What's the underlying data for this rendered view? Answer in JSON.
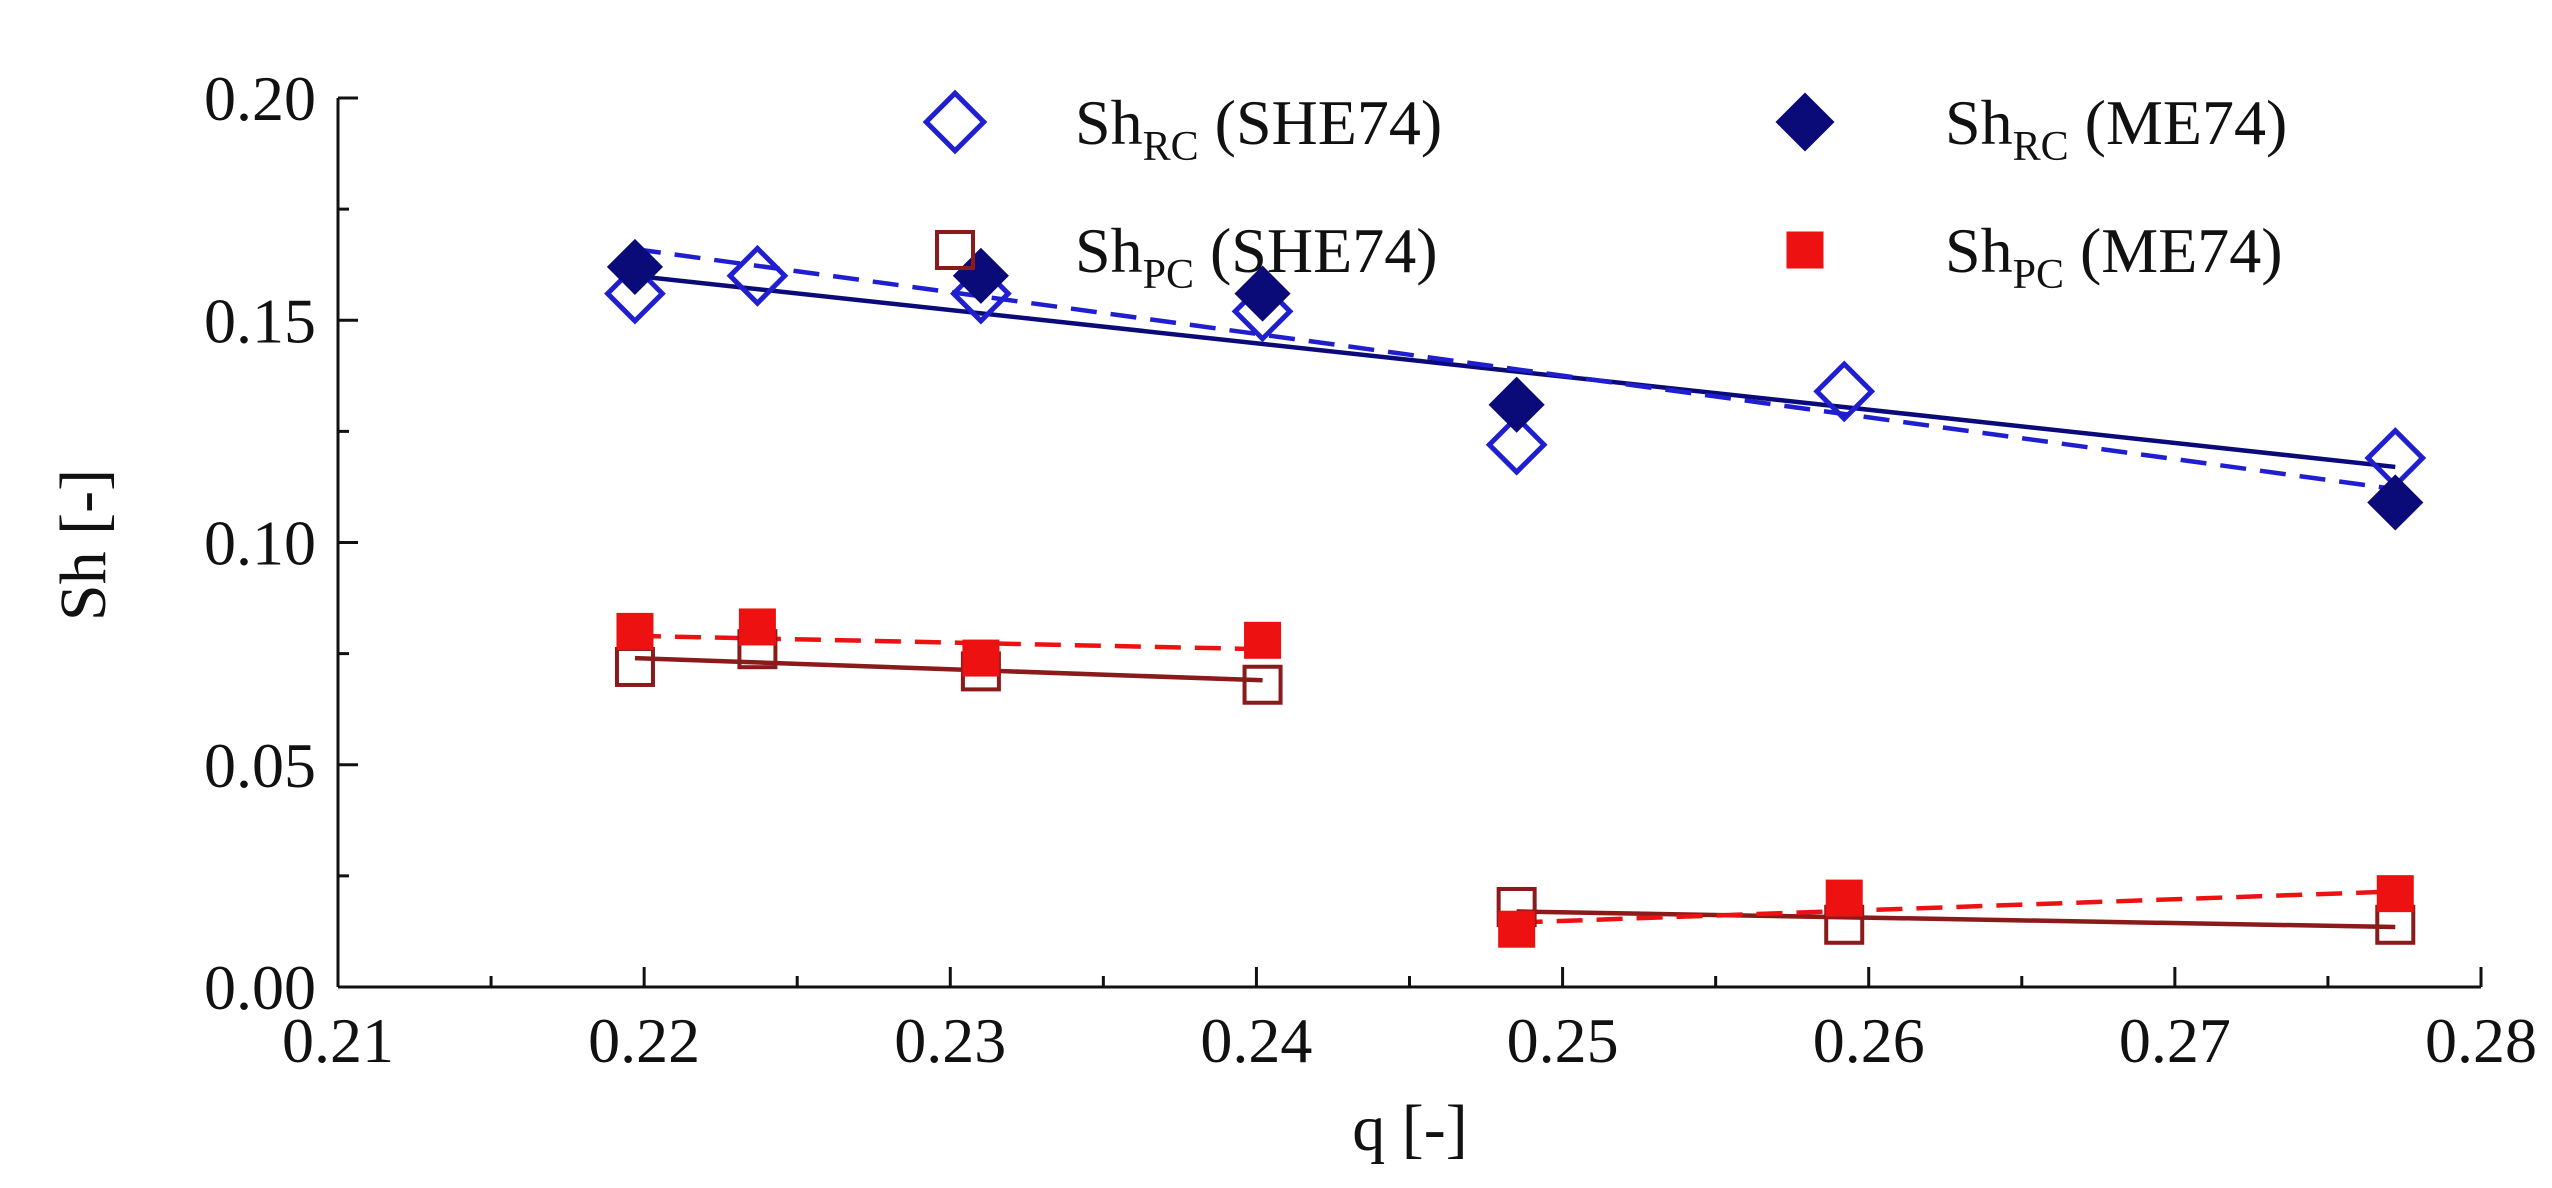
{
  "chart_data": {
    "type": "scatter",
    "title": "",
    "xlabel": "q [-]",
    "ylabel": "Sh [-]",
    "xlim": [
      0.21,
      0.28
    ],
    "ylim": [
      0.0,
      0.2
    ],
    "x_ticks": [
      0.21,
      0.22,
      0.23,
      0.24,
      0.25,
      0.26,
      0.27,
      0.28
    ],
    "x_tick_labels": [
      "0.21",
      "0.22",
      "0.23",
      "0.24",
      "0.25",
      "0.26",
      "0.27",
      "0.28"
    ],
    "y_ticks": [
      0.0,
      0.05,
      0.1,
      0.15,
      0.2
    ],
    "y_tick_labels": [
      "0.00",
      "0.05",
      "0.10",
      "0.15",
      "0.20"
    ],
    "grid": false,
    "legend_position": "top",
    "series": [
      {
        "key": "rc-she",
        "name": "Sh_RC (SHE74)",
        "legend_main": "Sh",
        "legend_sub": "RC",
        "legend_rest": " (SHE74)",
        "marker": "diamond-open",
        "color": "#1f1fd0",
        "x": [
          0.2197,
          0.2237,
          0.231,
          0.2402,
          0.2485,
          0.2592,
          0.2772
        ],
        "y": [
          0.156,
          0.16,
          0.156,
          0.152,
          0.122,
          0.134,
          0.119
        ]
      },
      {
        "key": "rc-me",
        "name": "Sh_RC (ME74)",
        "legend_main": "Sh",
        "legend_sub": "RC",
        "legend_rest": " (ME74)",
        "marker": "diamond-filled",
        "color": "#0a0a78",
        "x": [
          0.2197,
          0.231,
          0.2402,
          0.2485,
          0.2772
        ],
        "y": [
          0.162,
          0.16,
          0.156,
          0.131,
          0.109
        ]
      },
      {
        "key": "pc-she",
        "name": "Sh_PC (SHE74)",
        "legend_main": "Sh",
        "legend_sub": "PC",
        "legend_rest": " (SHE74)",
        "marker": "square-open",
        "color": "#8b1a1a",
        "x": [
          0.2197,
          0.2237,
          0.231,
          0.2402,
          0.2485,
          0.2592,
          0.2772
        ],
        "y": [
          0.072,
          0.076,
          0.071,
          0.068,
          0.018,
          0.014,
          0.014
        ]
      },
      {
        "key": "pc-me",
        "name": "Sh_PC (ME74)",
        "legend_main": "Sh",
        "legend_sub": "PC",
        "legend_rest": " (ME74)",
        "marker": "square-filled",
        "color": "#ee1111",
        "x": [
          0.2197,
          0.2237,
          0.231,
          0.2402,
          0.2485,
          0.2592,
          0.2772
        ],
        "y": [
          0.08,
          0.081,
          0.074,
          0.078,
          0.013,
          0.02,
          0.021
        ]
      }
    ],
    "fits": [
      {
        "name": "RC ME74 fit",
        "style": "solid",
        "color": "#0a0a78",
        "x": [
          0.2197,
          0.2772
        ],
        "y": [
          0.16,
          0.117
        ]
      },
      {
        "name": "RC SHE74 fit",
        "style": "dashed",
        "color": "#1f1fd0",
        "x": [
          0.2197,
          0.2772
        ],
        "y": [
          0.166,
          0.112
        ]
      },
      {
        "name": "PC SHE74 fit (low q)",
        "style": "solid",
        "color": "#8b1a1a",
        "x": [
          0.2197,
          0.2402
        ],
        "y": [
          0.074,
          0.069
        ]
      },
      {
        "name": "PC ME74 fit (low q)",
        "style": "dashed",
        "color": "#ee1111",
        "x": [
          0.2197,
          0.2402
        ],
        "y": [
          0.079,
          0.076
        ]
      },
      {
        "name": "PC SHE74 fit (high q)",
        "style": "solid",
        "color": "#8b1a1a",
        "x": [
          0.2485,
          0.2772
        ],
        "y": [
          0.017,
          0.0135
        ]
      },
      {
        "name": "PC ME74 fit (high q)",
        "style": "dashed",
        "color": "#ee1111",
        "x": [
          0.2485,
          0.2772
        ],
        "y": [
          0.0145,
          0.0215
        ]
      }
    ]
  }
}
